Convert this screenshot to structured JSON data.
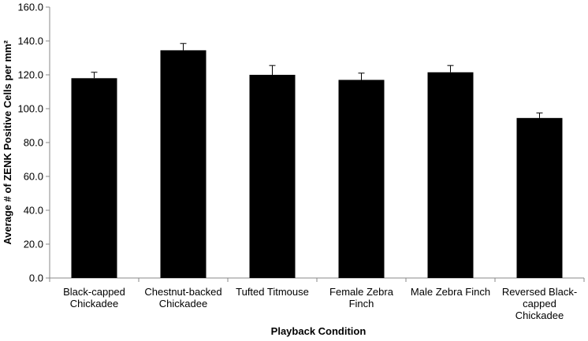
{
  "chart_data": {
    "type": "bar",
    "title": "",
    "xlabel": "Playback Condition",
    "ylabel": "Average # of ZENK Positive Cells per mm²",
    "ylim": [
      0,
      160
    ],
    "ytick_labels": [
      "0.0",
      "20.0",
      "40.0",
      "60.0",
      "80.0",
      "100.0",
      "120.0",
      "140.0",
      "160.0"
    ],
    "categories": [
      [
        "Black-capped",
        "Chickadee"
      ],
      [
        "Chestnut-backed",
        "Chickadee"
      ],
      [
        "Tufted Titmouse"
      ],
      [
        "Female Zebra",
        "Finch"
      ],
      [
        "Male Zebra Finch"
      ],
      [
        "Reversed Black-",
        "capped",
        "Chickadee"
      ]
    ],
    "values": [
      118.0,
      134.5,
      120.0,
      117.0,
      121.5,
      94.5
    ],
    "error": [
      3.5,
      4.0,
      5.5,
      4.0,
      4.0,
      3.0
    ],
    "bar_color": "#000000",
    "grid": false,
    "legend": "none"
  }
}
